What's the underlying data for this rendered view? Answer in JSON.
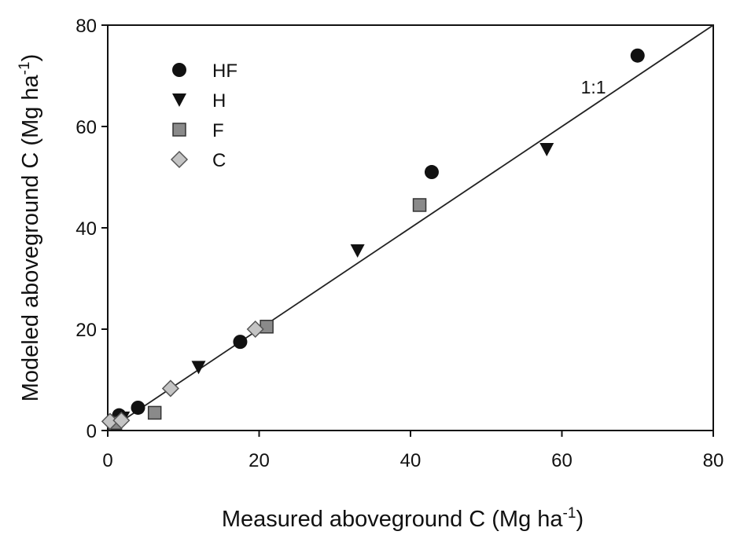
{
  "chart_data": {
    "type": "scatter",
    "xlabel_main": "Measured aboveground C (Mg ha",
    "xlabel_sup": "-1",
    "xlabel_end": ")",
    "ylabel_main": "Modeled aboveground C (Mg ha",
    "ylabel_sup": "-1",
    "ylabel_end": ")",
    "xlim": [
      0,
      80
    ],
    "ylim": [
      0,
      80
    ],
    "xticks": [
      0,
      20,
      40,
      60,
      80
    ],
    "yticks": [
      0,
      20,
      40,
      60,
      80
    ],
    "xtick_labels": [
      "0",
      "20",
      "40",
      "60",
      "80"
    ],
    "ytick_labels": [
      "0",
      "20",
      "40",
      "60",
      "80"
    ],
    "grid": false,
    "legend_position": "top-left",
    "reference_line": {
      "label": "1:1",
      "from": [
        0,
        0
      ],
      "to": [
        80,
        80
      ]
    },
    "series": [
      {
        "name": "HF",
        "marker": "circle",
        "color": "#111111",
        "points": [
          [
            1.5,
            3.0
          ],
          [
            4.0,
            4.5
          ],
          [
            17.5,
            17.5
          ],
          [
            42.8,
            51.0
          ],
          [
            70.0,
            74.0
          ]
        ]
      },
      {
        "name": "H",
        "marker": "triangle-down",
        "color": "#111111",
        "points": [
          [
            2.0,
            2.5
          ],
          [
            12.0,
            12.5
          ],
          [
            33.0,
            35.5
          ],
          [
            58.0,
            55.5
          ]
        ]
      },
      {
        "name": "F",
        "marker": "square",
        "color": "#8a8a8a",
        "points": [
          [
            1.0,
            1.5
          ],
          [
            6.2,
            3.5
          ],
          [
            21.0,
            20.5
          ],
          [
            41.2,
            44.5
          ]
        ]
      },
      {
        "name": "C",
        "marker": "diamond",
        "color": "#c4c4c4",
        "points": [
          [
            0.3,
            1.8
          ],
          [
            1.8,
            2.0
          ],
          [
            8.3,
            8.3
          ],
          [
            19.5,
            20.0
          ]
        ]
      }
    ]
  }
}
